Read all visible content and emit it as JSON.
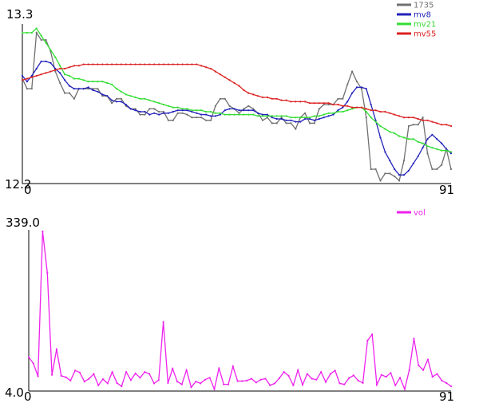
{
  "chart_data": [
    {
      "type": "line",
      "x": [
        0,
        1,
        2,
        3,
        4,
        5,
        6,
        7,
        8,
        9,
        10,
        11,
        12,
        13,
        14,
        15,
        16,
        17,
        18,
        19,
        20,
        21,
        22,
        23,
        24,
        25,
        26,
        27,
        28,
        29,
        30,
        31,
        32,
        33,
        34,
        35,
        36,
        37,
        38,
        39,
        40,
        41,
        42,
        43,
        44,
        45,
        46,
        47,
        48,
        49,
        50,
        51,
        52,
        53,
        54,
        55,
        56,
        57,
        58,
        59,
        60,
        61,
        62,
        63,
        64,
        65,
        66,
        67,
        68,
        69,
        70,
        71,
        72,
        73,
        74,
        75,
        76,
        77,
        78,
        79,
        80,
        81,
        82,
        83,
        84,
        85,
        86,
        87,
        88,
        89,
        90,
        91
      ],
      "ylim": [
        12.2,
        13.3
      ],
      "xtick_labels": [
        "0",
        "91"
      ],
      "ytick_labels": [
        "13.3",
        "12.2"
      ],
      "series": [
        {
          "name": "1735",
          "color": "#707070",
          "values": [
            12.93,
            12.86,
            12.86,
            13.25,
            13.2,
            13.2,
            13.12,
            12.98,
            12.9,
            12.83,
            12.83,
            12.79,
            12.86,
            12.86,
            12.86,
            12.86,
            12.86,
            12.81,
            12.81,
            12.76,
            12.79,
            12.79,
            12.74,
            12.72,
            12.72,
            12.68,
            12.68,
            12.72,
            12.72,
            12.7,
            12.7,
            12.64,
            12.64,
            12.69,
            12.69,
            12.68,
            12.66,
            12.66,
            12.66,
            12.64,
            12.64,
            12.74,
            12.79,
            12.79,
            12.74,
            12.72,
            12.69,
            12.72,
            12.74,
            12.72,
            12.69,
            12.64,
            12.66,
            12.62,
            12.62,
            12.66,
            12.62,
            12.62,
            12.58,
            12.66,
            12.69,
            12.62,
            12.62,
            12.72,
            12.75,
            12.75,
            12.75,
            12.79,
            12.79,
            12.89,
            12.98,
            12.91,
            12.86,
            12.66,
            12.3,
            12.3,
            12.22,
            12.27,
            12.27,
            12.25,
            12.22,
            12.36,
            12.6,
            12.61,
            12.61,
            12.66,
            12.41,
            12.3,
            12.3,
            12.33,
            12.44,
            12.3
          ]
        },
        {
          "name": "mv8",
          "color": "#2222bb",
          "values": [
            12.95,
            12.91,
            12.95,
            13.0,
            13.05,
            13.05,
            13.04,
            13.0,
            12.97,
            12.92,
            12.88,
            12.86,
            12.86,
            12.86,
            12.87,
            12.85,
            12.84,
            12.82,
            12.81,
            12.78,
            12.77,
            12.77,
            12.75,
            12.72,
            12.71,
            12.7,
            12.7,
            12.68,
            12.69,
            12.68,
            12.69,
            12.69,
            12.7,
            12.71,
            12.71,
            12.71,
            12.7,
            12.69,
            12.68,
            12.68,
            12.67,
            12.67,
            12.68,
            12.71,
            12.72,
            12.72,
            12.71,
            12.71,
            12.71,
            12.71,
            12.69,
            12.68,
            12.68,
            12.66,
            12.65,
            12.65,
            12.64,
            12.64,
            12.63,
            12.63,
            12.65,
            12.65,
            12.64,
            12.65,
            12.66,
            12.67,
            12.68,
            12.71,
            12.73,
            12.77,
            12.83,
            12.87,
            12.87,
            12.86,
            12.75,
            12.64,
            12.52,
            12.42,
            12.36,
            12.3,
            12.26,
            12.26,
            12.29,
            12.34,
            12.39,
            12.45,
            12.51,
            12.54,
            12.51,
            12.48,
            12.44,
            12.41
          ]
        },
        {
          "name": "mv21",
          "color": "#33dd33",
          "values": [
            13.25,
            13.25,
            13.25,
            13.28,
            13.23,
            13.18,
            13.13,
            13.08,
            13.02,
            12.96,
            12.95,
            12.93,
            12.93,
            12.92,
            12.91,
            12.91,
            12.91,
            12.91,
            12.9,
            12.89,
            12.86,
            12.84,
            12.82,
            12.81,
            12.8,
            12.79,
            12.79,
            12.78,
            12.77,
            12.76,
            12.75,
            12.74,
            12.73,
            12.73,
            12.72,
            12.72,
            12.71,
            12.71,
            12.71,
            12.7,
            12.7,
            12.69,
            12.69,
            12.68,
            12.68,
            12.68,
            12.68,
            12.68,
            12.68,
            12.68,
            12.67,
            12.67,
            12.67,
            12.67,
            12.67,
            12.67,
            12.67,
            12.66,
            12.66,
            12.66,
            12.66,
            12.66,
            12.67,
            12.67,
            12.68,
            12.69,
            12.69,
            12.7,
            12.7,
            12.71,
            12.72,
            12.73,
            12.73,
            12.7,
            12.66,
            12.63,
            12.6,
            12.58,
            12.56,
            12.55,
            12.53,
            12.52,
            12.51,
            12.51,
            12.49,
            12.48,
            12.46,
            12.45,
            12.44,
            12.43,
            12.43,
            12.42
          ]
        },
        {
          "name": "mv55",
          "color": "#dd2222",
          "values": [
            12.92,
            12.93,
            12.94,
            12.95,
            12.96,
            12.97,
            12.98,
            12.99,
            13.0,
            13.0,
            13.01,
            13.02,
            13.02,
            13.03,
            13.03,
            13.03,
            13.03,
            13.03,
            13.03,
            13.03,
            13.03,
            13.03,
            13.03,
            13.03,
            13.03,
            13.03,
            13.03,
            13.03,
            13.03,
            13.03,
            13.03,
            13.03,
            13.03,
            13.03,
            13.03,
            13.03,
            13.03,
            13.03,
            13.02,
            13.01,
            13.0,
            12.98,
            12.96,
            12.94,
            12.92,
            12.9,
            12.88,
            12.85,
            12.83,
            12.82,
            12.81,
            12.8,
            12.8,
            12.79,
            12.79,
            12.78,
            12.78,
            12.77,
            12.77,
            12.77,
            12.77,
            12.76,
            12.76,
            12.76,
            12.76,
            12.76,
            12.75,
            12.75,
            12.74,
            12.74,
            12.73,
            12.73,
            12.73,
            12.72,
            12.71,
            12.71,
            12.7,
            12.7,
            12.69,
            12.68,
            12.67,
            12.66,
            12.66,
            12.66,
            12.65,
            12.64,
            12.64,
            12.63,
            12.62,
            12.61,
            12.61,
            12.6
          ]
        }
      ]
    },
    {
      "type": "line",
      "x": [
        0,
        1,
        2,
        3,
        4,
        5,
        6,
        7,
        8,
        9,
        10,
        11,
        12,
        13,
        14,
        15,
        16,
        17,
        18,
        19,
        20,
        21,
        22,
        23,
        24,
        25,
        26,
        27,
        28,
        29,
        30,
        31,
        32,
        33,
        34,
        35,
        36,
        37,
        38,
        39,
        40,
        41,
        42,
        43,
        44,
        45,
        46,
        47,
        48,
        49,
        50,
        51,
        52,
        53,
        54,
        55,
        56,
        57,
        58,
        59,
        60,
        61,
        62,
        63,
        64,
        65,
        66,
        67,
        68,
        69,
        70,
        71,
        72,
        73,
        74,
        75,
        76,
        77,
        78,
        79,
        80,
        81,
        82,
        83,
        84,
        85,
        86,
        87,
        88,
        89,
        90,
        91
      ],
      "ylim": [
        4.0,
        339.0
      ],
      "xtick_labels": [
        "0",
        "91"
      ],
      "ytick_labels": [
        "339.0",
        "4.0"
      ],
      "series": [
        {
          "name": "vol",
          "color": "#ee22ee",
          "values": [
            75,
            62,
            35,
            339,
            252,
            38,
            92,
            36,
            33,
            26,
            47,
            43,
            24,
            30,
            40,
            16,
            29,
            20,
            44,
            21,
            14,
            44,
            27,
            41,
            32,
            44,
            40,
            20,
            27,
            149,
            21,
            51,
            24,
            18,
            48,
            12,
            24,
            20,
            28,
            32,
            8,
            52,
            18,
            18,
            56,
            25,
            25,
            26,
            30,
            22,
            28,
            30,
            16,
            20,
            31,
            44,
            36,
            16,
            48,
            17,
            40,
            30,
            28,
            44,
            23,
            40,
            47,
            20,
            18,
            31,
            37,
            26,
            21,
            110,
            123,
            17,
            38,
            34,
            42,
            16,
            32,
            8,
            48,
            114,
            58,
            48,
            70,
            34,
            40,
            26,
            21,
            14
          ]
        }
      ]
    }
  ]
}
